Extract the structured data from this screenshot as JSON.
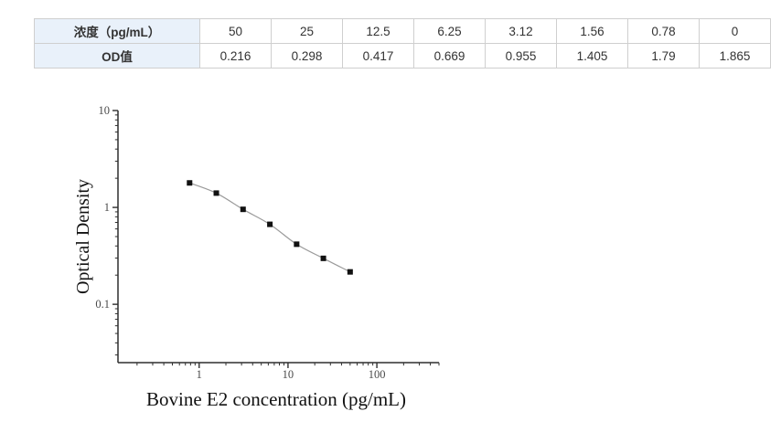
{
  "table": {
    "concentration_label": "浓度（pg/mL）",
    "od_label": "OD值",
    "concentrations": [
      "50",
      "25",
      "12.5",
      "6.25",
      "3.12",
      "1.56",
      "0.78",
      "0"
    ],
    "od_values": [
      "0.216",
      "0.298",
      "0.417",
      "0.669",
      "0.955",
      "1.405",
      "1.79",
      "1.865"
    ]
  },
  "chart_data": {
    "type": "scatter",
    "x": [
      0.78,
      1.56,
      3.12,
      6.25,
      12.5,
      25,
      50
    ],
    "y": [
      1.79,
      1.405,
      0.955,
      0.669,
      0.417,
      0.298,
      0.216
    ],
    "title": "",
    "xlabel": "Bovine E2 concentration (pg/mL)",
    "ylabel": "Optical Density",
    "xscale": "log",
    "yscale": "log",
    "xlim": [
      0.122,
      500
    ],
    "ylim": [
      0.025,
      10
    ],
    "x_ticks": [
      1,
      10,
      100
    ],
    "x_tick_labels": [
      "1",
      "10",
      "100"
    ],
    "y_ticks": [
      10,
      1,
      0.1
    ],
    "y_tick_labels": [
      "10",
      "1",
      "0.1"
    ],
    "grid": false,
    "legend": null,
    "marker": "filled-square",
    "marker_color": "#111111",
    "line_color": "#9a9a9a"
  },
  "colors": {
    "page_background": "#ffffff",
    "table_header_bg": "#e9f1fa",
    "table_border": "#cfcfcf",
    "table_text": "#333333",
    "axis_color": "#2f2f2f",
    "tick_label_color": "#4a4a4a"
  }
}
